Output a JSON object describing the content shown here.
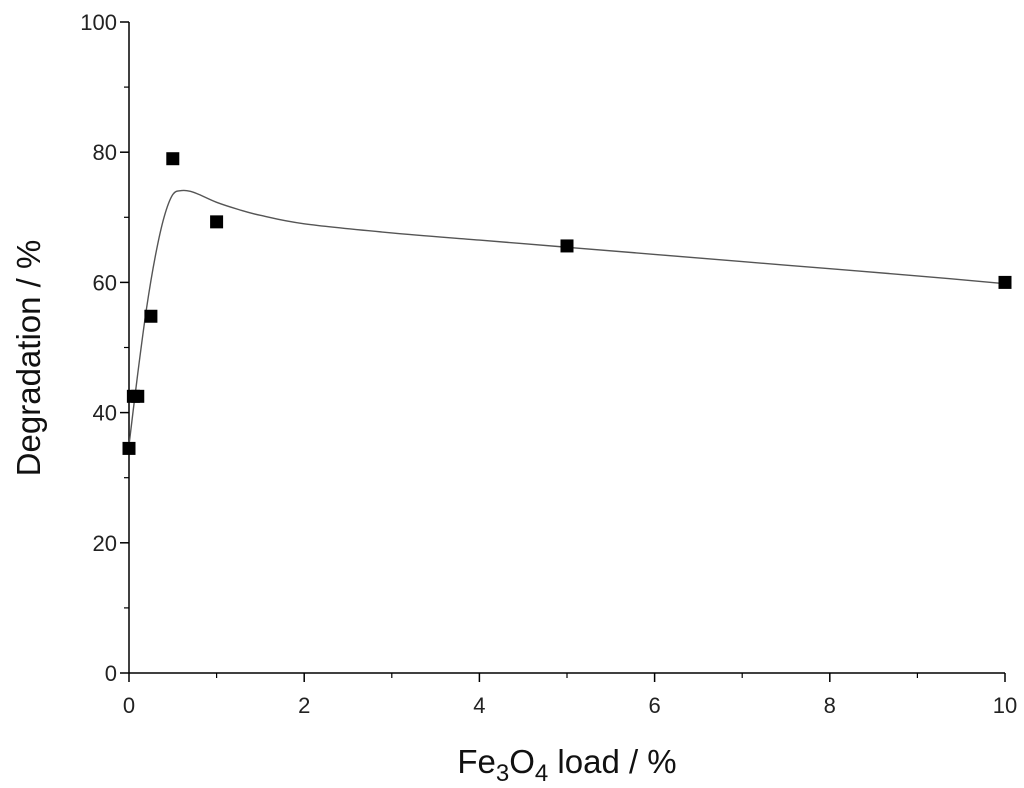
{
  "chart_data": {
    "type": "scatter",
    "title": "",
    "xlabel": {
      "parts": [
        "Fe",
        "3",
        "O",
        "4",
        " load / %"
      ]
    },
    "ylabel": "Degradation / %",
    "xlim": [
      0,
      10
    ],
    "ylim": [
      0,
      100
    ],
    "x_ticks": [
      0,
      2,
      4,
      6,
      8,
      10
    ],
    "x_tick_labels": [
      "0",
      "2",
      "4",
      "6",
      "8",
      "10"
    ],
    "x_minor_ticks": [
      1,
      3,
      5,
      7,
      9
    ],
    "y_ticks": [
      0,
      20,
      40,
      60,
      80,
      100
    ],
    "y_tick_labels": [
      "0",
      "20",
      "40",
      "60",
      "80",
      "100"
    ],
    "y_minor_ticks": [
      10,
      30,
      50,
      70,
      90
    ],
    "grid": false,
    "legend": "none",
    "series": [
      {
        "marker": "square",
        "x": [
          0,
          0.05,
          0.1,
          0.25,
          0.5,
          1,
          5,
          10
        ],
        "y": [
          34.5,
          42.5,
          42.5,
          54.8,
          79,
          69.3,
          65.6,
          60
        ]
      },
      {
        "style": "line",
        "x": [
          0,
          0.1,
          0.2,
          0.3,
          0.4,
          0.5,
          0.6,
          0.7,
          0.8,
          1,
          1.25,
          1.5,
          2,
          3,
          4,
          5,
          6,
          7,
          8,
          9,
          10
        ],
        "y": [
          35,
          46,
          56,
          64,
          70,
          73.5,
          74.1,
          74,
          73.5,
          72.3,
          71.2,
          70.3,
          69,
          67.6,
          66.5,
          65.4,
          64.3,
          63.2,
          62.1,
          61,
          59.8
        ]
      }
    ],
    "colors": {
      "marker": "#000000",
      "line": "#555555",
      "axis": "#000000"
    }
  }
}
